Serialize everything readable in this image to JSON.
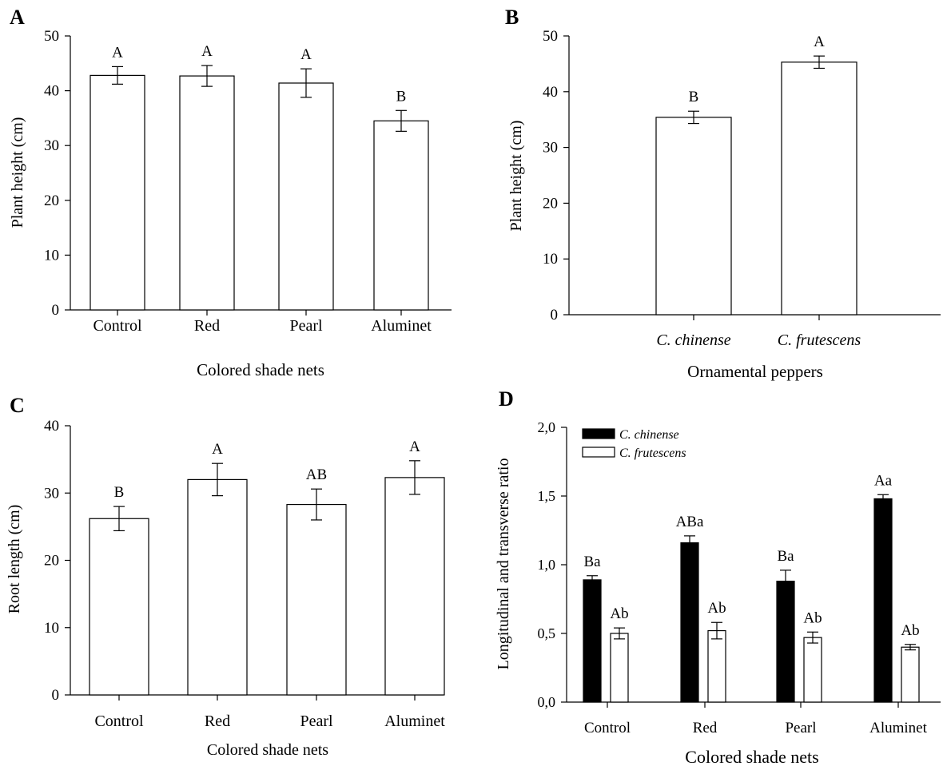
{
  "chart_data": [
    {
      "panel": "A",
      "type": "bar",
      "xlabel": "Colored shade nets",
      "ylabel": "Plant height (cm)",
      "ylim": [
        0,
        50
      ],
      "yticks": [
        0,
        10,
        20,
        30,
        40,
        50
      ],
      "categories": [
        "Control",
        "Red",
        "Pearl",
        "Aluminet"
      ],
      "series": [
        {
          "values": [
            42.8,
            42.7,
            41.4,
            34.5
          ],
          "errors": [
            1.6,
            1.9,
            2.6,
            1.9
          ],
          "labels": [
            "A",
            "A",
            "A",
            "B"
          ],
          "fill": "#ffffff"
        }
      ]
    },
    {
      "panel": "B",
      "type": "bar",
      "xlabel": "Ornamental peppers",
      "ylabel": "Plant height (cm)",
      "ylim": [
        0,
        50
      ],
      "yticks": [
        0,
        10,
        20,
        30,
        40,
        50
      ],
      "categories": [
        "C. chinense",
        "C. frutescens"
      ],
      "italic_categories": true,
      "series": [
        {
          "values": [
            35.4,
            45.3
          ],
          "errors": [
            1.1,
            1.1
          ],
          "labels": [
            "B",
            "A"
          ],
          "fill": "#ffffff"
        }
      ]
    },
    {
      "panel": "C",
      "type": "bar",
      "xlabel": "Colored shade nets",
      "ylabel": "Root length (cm)",
      "ylim": [
        0,
        40
      ],
      "yticks": [
        0,
        10,
        20,
        30,
        40
      ],
      "categories": [
        "Control",
        "Red",
        "Pearl",
        "Aluminet"
      ],
      "series": [
        {
          "values": [
            26.2,
            32.0,
            28.3,
            32.3
          ],
          "errors": [
            1.8,
            2.4,
            2.3,
            2.5
          ],
          "labels": [
            "B",
            "A",
            "AB",
            "A"
          ],
          "fill": "#ffffff"
        }
      ]
    },
    {
      "panel": "D",
      "type": "bar",
      "xlabel": "Colored shade nets",
      "ylabel": "Longitudinal and transverse  ratio",
      "ylim": [
        0,
        2.0
      ],
      "yticks": [
        0,
        0.5,
        1.0,
        1.5,
        2.0
      ],
      "ytick_labels": [
        "0,0",
        "0,5",
        "1,0",
        "1,5",
        "2,0"
      ],
      "categories": [
        "Control",
        "Red",
        "Pearl",
        "Aluminet"
      ],
      "legend": "top-left",
      "series": [
        {
          "name": "C. chinense",
          "values": [
            0.89,
            1.16,
            0.88,
            1.48
          ],
          "errors": [
            0.03,
            0.05,
            0.08,
            0.03
          ],
          "labels": [
            "Ba",
            "ABa",
            "Ba",
            "Aa"
          ],
          "fill": "#000000"
        },
        {
          "name": "C. frutescens",
          "values": [
            0.5,
            0.52,
            0.47,
            0.4
          ],
          "errors": [
            0.04,
            0.06,
            0.04,
            0.02
          ],
          "labels": [
            "Ab",
            "Ab",
            "Ab",
            "Ab"
          ],
          "fill": "#ffffff"
        }
      ]
    }
  ]
}
